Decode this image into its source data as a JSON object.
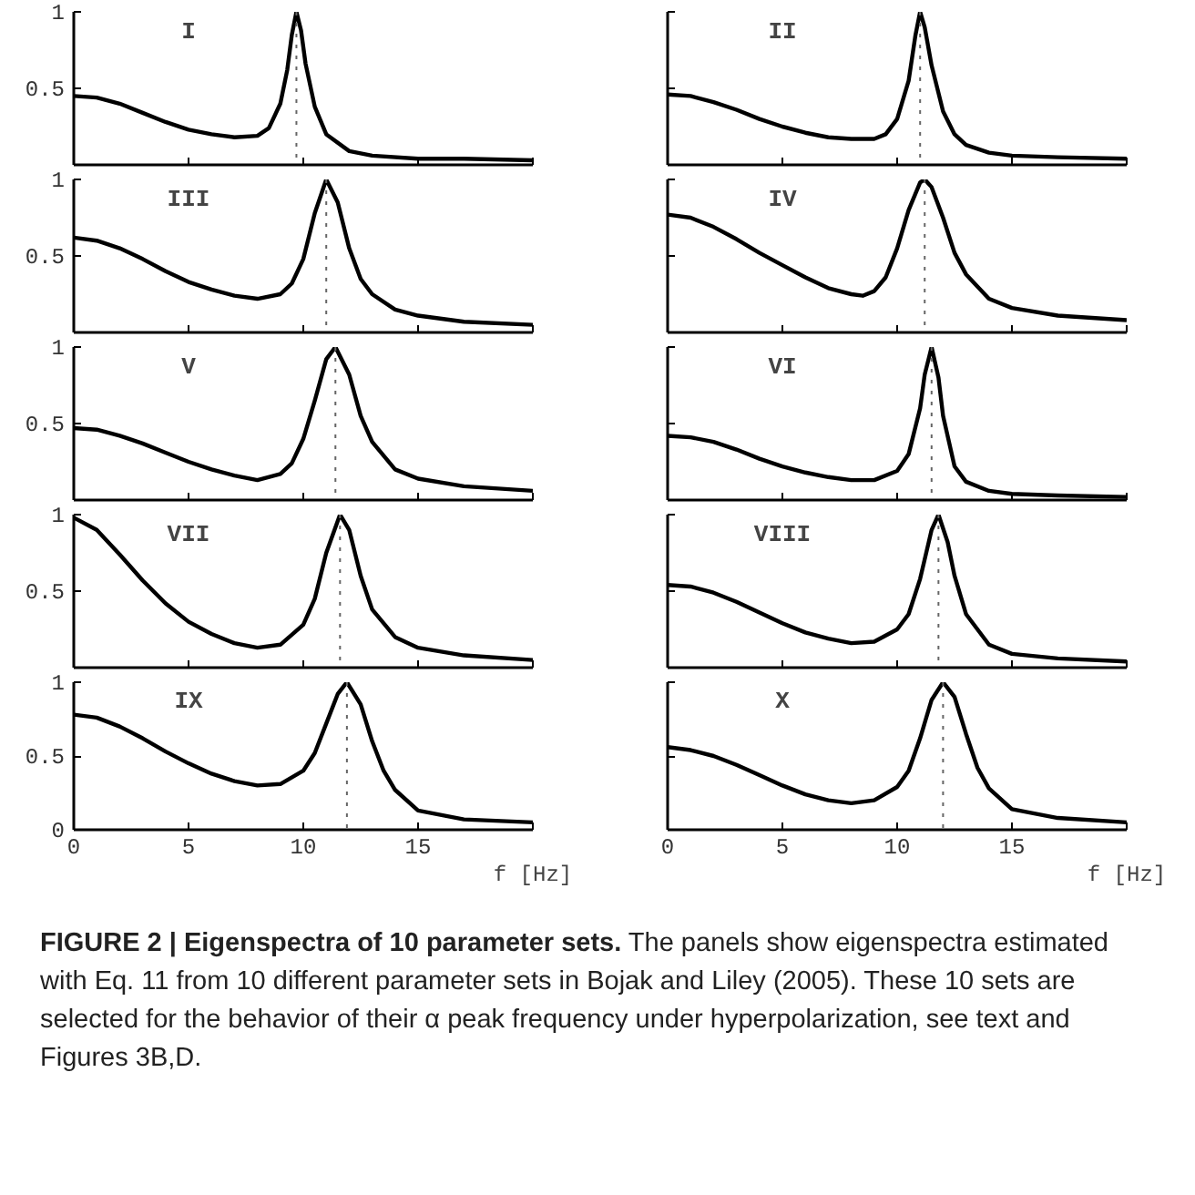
{
  "chart_data": [
    {
      "type": "line",
      "tick_labels": "y",
      "xlim": [
        0,
        20
      ],
      "ylim": [
        0,
        1
      ],
      "xticks": [
        0,
        5,
        10,
        15,
        20
      ],
      "yticks": [
        0.5,
        1
      ],
      "grid": false,
      "annotations": [
        "I"
      ],
      "ref_lines": [
        {
          "axis": "x",
          "value": 9.7,
          "line_style": "dotted",
          "color": "#666666"
        }
      ],
      "series": [
        {
          "color": "#000000",
          "line_style": "solid",
          "x": [
            0,
            1,
            2,
            3,
            4,
            5,
            6,
            7,
            8,
            8.5,
            9,
            9.3,
            9.5,
            9.7,
            9.9,
            10.1,
            10.5,
            11,
            12,
            13,
            15,
            17,
            20
          ],
          "values": [
            0.45,
            0.44,
            0.4,
            0.34,
            0.28,
            0.23,
            0.2,
            0.18,
            0.19,
            0.24,
            0.4,
            0.62,
            0.85,
            1.0,
            0.88,
            0.66,
            0.38,
            0.2,
            0.09,
            0.06,
            0.04,
            0.04,
            0.03
          ]
        }
      ]
    },
    {
      "type": "line",
      "tick_labels": false,
      "xlim": [
        0,
        20
      ],
      "ylim": [
        0,
        1
      ],
      "xticks": [
        0,
        5,
        10,
        15,
        20
      ],
      "yticks": [
        0.5,
        1
      ],
      "grid": false,
      "annotations": [
        "II"
      ],
      "ref_lines": [
        {
          "axis": "x",
          "value": 11.0,
          "line_style": "dotted",
          "color": "#666666"
        }
      ],
      "series": [
        {
          "color": "#000000",
          "line_style": "solid",
          "x": [
            0,
            1,
            2,
            3,
            4,
            5,
            6,
            7,
            8,
            9,
            9.5,
            10,
            10.5,
            10.8,
            11,
            11.2,
            11.5,
            12,
            12.5,
            13,
            14,
            15,
            17,
            20
          ],
          "values": [
            0.46,
            0.45,
            0.41,
            0.36,
            0.3,
            0.25,
            0.21,
            0.18,
            0.17,
            0.17,
            0.2,
            0.3,
            0.55,
            0.85,
            1.0,
            0.9,
            0.65,
            0.35,
            0.2,
            0.13,
            0.08,
            0.06,
            0.05,
            0.04
          ]
        }
      ]
    },
    {
      "type": "line",
      "tick_labels": "y",
      "xlim": [
        0,
        20
      ],
      "ylim": [
        0,
        1
      ],
      "xticks": [
        0,
        5,
        10,
        15,
        20
      ],
      "yticks": [
        0.5,
        1
      ],
      "grid": false,
      "annotations": [
        "III"
      ],
      "ref_lines": [
        {
          "axis": "x",
          "value": 11.0,
          "line_style": "dotted",
          "color": "#666666"
        }
      ],
      "series": [
        {
          "color": "#000000",
          "line_style": "solid",
          "x": [
            0,
            1,
            2,
            3,
            4,
            5,
            6,
            7,
            8,
            9,
            9.5,
            10,
            10.5,
            11,
            11.5,
            12,
            12.5,
            13,
            14,
            15,
            17,
            20
          ],
          "values": [
            0.62,
            0.6,
            0.55,
            0.48,
            0.4,
            0.33,
            0.28,
            0.24,
            0.22,
            0.25,
            0.32,
            0.48,
            0.78,
            1.0,
            0.85,
            0.55,
            0.35,
            0.25,
            0.15,
            0.11,
            0.07,
            0.05
          ]
        }
      ]
    },
    {
      "type": "line",
      "tick_labels": false,
      "xlim": [
        0,
        20
      ],
      "ylim": [
        0,
        1
      ],
      "xticks": [
        0,
        5,
        10,
        15,
        20
      ],
      "yticks": [
        0.5,
        1
      ],
      "grid": false,
      "annotations": [
        "IV"
      ],
      "ref_lines": [
        {
          "axis": "x",
          "value": 11.2,
          "line_style": "dotted",
          "color": "#666666"
        }
      ],
      "series": [
        {
          "color": "#000000",
          "line_style": "solid",
          "x": [
            0,
            1,
            2,
            3,
            4,
            5,
            6,
            7,
            8,
            8.5,
            9,
            9.5,
            10,
            10.5,
            11,
            11.2,
            11.5,
            12,
            12.5,
            13,
            14,
            15,
            17,
            20
          ],
          "values": [
            0.77,
            0.75,
            0.69,
            0.61,
            0.52,
            0.44,
            0.36,
            0.29,
            0.25,
            0.24,
            0.27,
            0.36,
            0.55,
            0.8,
            0.98,
            1.0,
            0.95,
            0.75,
            0.52,
            0.38,
            0.22,
            0.16,
            0.11,
            0.08
          ]
        }
      ]
    },
    {
      "type": "line",
      "tick_labels": "y",
      "xlim": [
        0,
        20
      ],
      "ylim": [
        0,
        1
      ],
      "xticks": [
        0,
        5,
        10,
        15,
        20
      ],
      "yticks": [
        0.5,
        1
      ],
      "grid": false,
      "annotations": [
        "V"
      ],
      "ref_lines": [
        {
          "axis": "x",
          "value": 11.4,
          "line_style": "dotted",
          "color": "#666666"
        }
      ],
      "series": [
        {
          "color": "#000000",
          "line_style": "solid",
          "x": [
            0,
            1,
            2,
            3,
            4,
            5,
            6,
            7,
            8,
            9,
            9.5,
            10,
            10.5,
            11,
            11.4,
            12,
            12.5,
            13,
            14,
            15,
            17,
            20
          ],
          "values": [
            0.47,
            0.46,
            0.42,
            0.37,
            0.31,
            0.25,
            0.2,
            0.16,
            0.13,
            0.17,
            0.24,
            0.4,
            0.65,
            0.92,
            1.0,
            0.82,
            0.55,
            0.38,
            0.2,
            0.14,
            0.09,
            0.06
          ]
        }
      ]
    },
    {
      "type": "line",
      "tick_labels": false,
      "xlim": [
        0,
        20
      ],
      "ylim": [
        0,
        1
      ],
      "xticks": [
        0,
        5,
        10,
        15,
        20
      ],
      "yticks": [
        0.5,
        1
      ],
      "grid": false,
      "annotations": [
        "VI"
      ],
      "ref_lines": [
        {
          "axis": "x",
          "value": 11.5,
          "line_style": "dotted",
          "color": "#666666"
        }
      ],
      "series": [
        {
          "color": "#000000",
          "line_style": "solid",
          "x": [
            0,
            1,
            2,
            3,
            4,
            5,
            6,
            7,
            8,
            9,
            10,
            10.5,
            11,
            11.2,
            11.5,
            11.8,
            12,
            12.5,
            13,
            14,
            15,
            17,
            20
          ],
          "values": [
            0.42,
            0.41,
            0.38,
            0.33,
            0.27,
            0.22,
            0.18,
            0.15,
            0.13,
            0.13,
            0.19,
            0.3,
            0.6,
            0.82,
            1.0,
            0.8,
            0.55,
            0.22,
            0.12,
            0.06,
            0.04,
            0.03,
            0.02
          ]
        }
      ]
    },
    {
      "type": "line",
      "tick_labels": "y",
      "xlim": [
        0,
        20
      ],
      "ylim": [
        0,
        1
      ],
      "xticks": [
        0,
        5,
        10,
        15,
        20
      ],
      "yticks": [
        0.5,
        1
      ],
      "grid": false,
      "annotations": [
        "VII"
      ],
      "ref_lines": [
        {
          "axis": "x",
          "value": 11.6,
          "line_style": "dotted",
          "color": "#666666"
        }
      ],
      "series": [
        {
          "color": "#000000",
          "line_style": "solid",
          "x": [
            0,
            1,
            2,
            3,
            4,
            5,
            6,
            7,
            8,
            9,
            10,
            10.5,
            11,
            11.6,
            12,
            12.5,
            13,
            14,
            15,
            17,
            20
          ],
          "values": [
            0.98,
            0.9,
            0.74,
            0.57,
            0.42,
            0.3,
            0.22,
            0.16,
            0.13,
            0.15,
            0.28,
            0.45,
            0.75,
            1.0,
            0.9,
            0.6,
            0.38,
            0.2,
            0.13,
            0.08,
            0.05
          ]
        }
      ]
    },
    {
      "type": "line",
      "tick_labels": false,
      "xlim": [
        0,
        20
      ],
      "ylim": [
        0,
        1
      ],
      "xticks": [
        0,
        5,
        10,
        15,
        20
      ],
      "yticks": [
        0.5,
        1
      ],
      "grid": false,
      "annotations": [
        "VIII"
      ],
      "ref_lines": [
        {
          "axis": "x",
          "value": 11.8,
          "line_style": "dotted",
          "color": "#666666"
        }
      ],
      "series": [
        {
          "color": "#000000",
          "line_style": "solid",
          "x": [
            0,
            1,
            2,
            3,
            4,
            5,
            6,
            7,
            8,
            9,
            10,
            10.5,
            11,
            11.5,
            11.8,
            12.2,
            12.5,
            13,
            14,
            15,
            17,
            20
          ],
          "values": [
            0.54,
            0.53,
            0.49,
            0.43,
            0.36,
            0.29,
            0.23,
            0.19,
            0.16,
            0.17,
            0.25,
            0.35,
            0.58,
            0.9,
            1.0,
            0.82,
            0.6,
            0.35,
            0.15,
            0.09,
            0.06,
            0.04
          ]
        }
      ]
    },
    {
      "type": "line",
      "xlabel": "f [Hz]",
      "xlim": [
        0,
        20
      ],
      "ylim": [
        0,
        1
      ],
      "xticks": [
        0,
        5,
        10,
        15,
        {
          "value": 20,
          "label": null
        }
      ],
      "yticks": [
        0,
        0.5,
        1
      ],
      "grid": false,
      "annotations": [
        "IX"
      ],
      "ref_lines": [
        {
          "axis": "x",
          "value": 11.9,
          "line_style": "dotted",
          "color": "#666666"
        }
      ],
      "series": [
        {
          "color": "#000000",
          "line_style": "solid",
          "x": [
            0,
            1,
            2,
            3,
            4,
            5,
            6,
            7,
            8,
            9,
            10,
            10.5,
            11,
            11.5,
            11.9,
            12.5,
            13,
            13.5,
            14,
            15,
            17,
            20
          ],
          "values": [
            0.78,
            0.76,
            0.7,
            0.62,
            0.53,
            0.45,
            0.38,
            0.33,
            0.3,
            0.31,
            0.4,
            0.52,
            0.72,
            0.92,
            1.0,
            0.85,
            0.6,
            0.4,
            0.27,
            0.13,
            0.07,
            0.05
          ]
        }
      ]
    },
    {
      "type": "line",
      "tick_labels": "x",
      "xlabel": "f [Hz]",
      "xlim": [
        0,
        20
      ],
      "ylim": [
        0,
        1
      ],
      "xticks": [
        0,
        5,
        10,
        15,
        {
          "value": 20,
          "label": null
        }
      ],
      "yticks": [
        0.5,
        1
      ],
      "grid": false,
      "annotations": [
        "X"
      ],
      "ref_lines": [
        {
          "axis": "x",
          "value": 12.0,
          "line_style": "dotted",
          "color": "#666666"
        }
      ],
      "series": [
        {
          "color": "#000000",
          "line_style": "solid",
          "x": [
            0,
            1,
            2,
            3,
            4,
            5,
            6,
            7,
            8,
            9,
            10,
            10.5,
            11,
            11.5,
            12,
            12.5,
            13,
            13.5,
            14,
            15,
            17,
            20
          ],
          "values": [
            0.56,
            0.54,
            0.5,
            0.44,
            0.37,
            0.3,
            0.24,
            0.2,
            0.18,
            0.2,
            0.29,
            0.4,
            0.62,
            0.88,
            1.0,
            0.9,
            0.65,
            0.42,
            0.28,
            0.14,
            0.08,
            0.05
          ]
        }
      ]
    },
    {
      "type": "other",
      "title": "FIGURE 2 | Eigenspectra of 10 parameter sets.",
      "annotations": [
        "The panels show eigenspectra estimated with Eq. 11 from 10 different parameter sets in Bojak and Liley (2005). These 10 sets are selected for the behavior of their α peak frequency under hyperpolarization, see text and Figures 3B,D."
      ]
    }
  ]
}
